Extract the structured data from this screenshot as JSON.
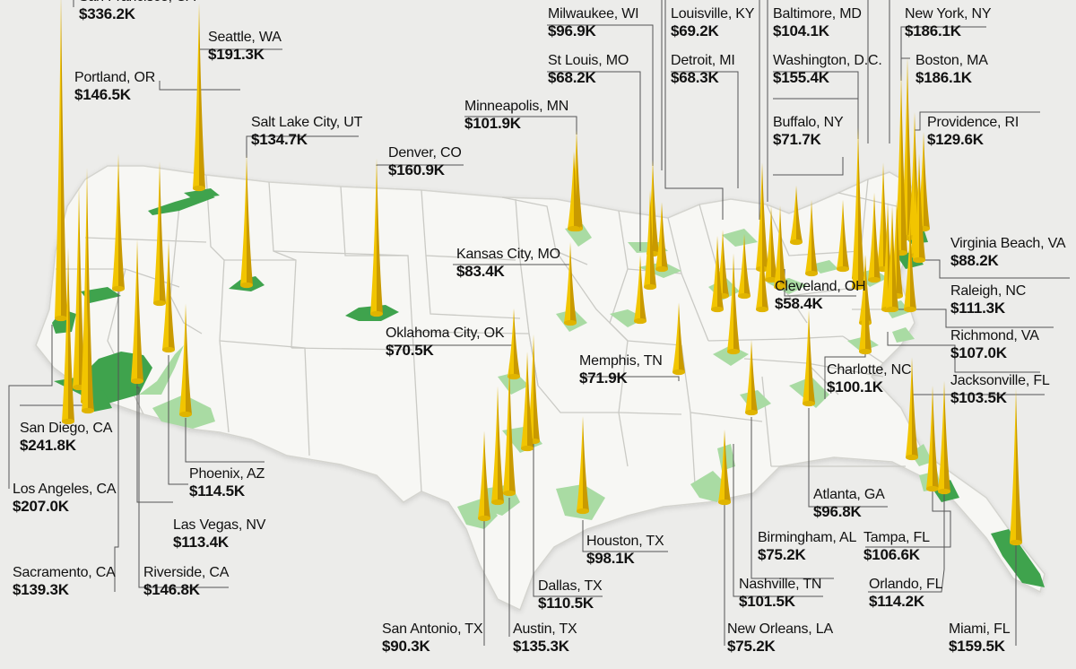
{
  "colors": {
    "background": "#ececea",
    "land": "#f7f7f4",
    "state_border": "#c9c9c4",
    "metro_fill_dark": "#3fa34d",
    "metro_fill_light": "#a9dba3",
    "spike_fill": "#f2c500",
    "spike_shade": "#c99a00",
    "leader_line": "#555555"
  },
  "cities": [
    {
      "name": "San Francisco, CA",
      "value": "$336.2K"
    },
    {
      "name": "Seattle, WA",
      "value": "$191.3K"
    },
    {
      "name": "Portland, OR",
      "value": "$146.5K"
    },
    {
      "name": "Salt Lake City, UT",
      "value": "$134.7K"
    },
    {
      "name": "Denver, CO",
      "value": "$160.9K"
    },
    {
      "name": "Milwaukee, WI",
      "value": "$96.9K"
    },
    {
      "name": "St Louis, MO",
      "value": "$68.2K"
    },
    {
      "name": "Minneapolis, MN",
      "value": "$101.9K"
    },
    {
      "name": "Louisville, KY",
      "value": "$69.2K"
    },
    {
      "name": "Detroit, MI",
      "value": "$68.3K"
    },
    {
      "name": "Baltimore, MD",
      "value": "$104.1K"
    },
    {
      "name": "Washington, D.C.",
      "value": "$155.4K"
    },
    {
      "name": "Buffalo, NY",
      "value": "$71.7K"
    },
    {
      "name": "New York, NY",
      "value": "$186.1K"
    },
    {
      "name": "Boston, MA",
      "value": "$186.1K"
    },
    {
      "name": "Providence, RI",
      "value": "$129.6K"
    },
    {
      "name": "Kansas City, MO",
      "value": "$83.4K"
    },
    {
      "name": "Virginia Beach, VA",
      "value": "$88.2K"
    },
    {
      "name": "Raleigh, NC",
      "value": "$111.3K"
    },
    {
      "name": "Cleveland, OH",
      "value": "$58.4K"
    },
    {
      "name": "Richmond, VA",
      "value": "$107.0K"
    },
    {
      "name": "Oklahoma City, OK",
      "value": "$70.5K"
    },
    {
      "name": "Memphis, TN",
      "value": "$71.9K"
    },
    {
      "name": "Charlotte, NC",
      "value": "$100.1K"
    },
    {
      "name": "Jacksonville, FL",
      "value": "$103.5K"
    },
    {
      "name": "San Diego, CA",
      "value": "$241.8K"
    },
    {
      "name": "Los Angeles, CA",
      "value": "$207.0K"
    },
    {
      "name": "Phoenix, AZ",
      "value": "$114.5K"
    },
    {
      "name": "Las Vegas, NV",
      "value": "$113.4K"
    },
    {
      "name": "Atlanta, GA",
      "value": "$96.8K"
    },
    {
      "name": "Sacramento, CA",
      "value": "$139.3K"
    },
    {
      "name": "Riverside, CA",
      "value": "$146.8K"
    },
    {
      "name": "Houston, TX",
      "value": "$98.1K"
    },
    {
      "name": "Dallas, TX",
      "value": "$110.5K"
    },
    {
      "name": "Birmingham, AL",
      "value": "$75.2K"
    },
    {
      "name": "Tampa, FL",
      "value": "$106.6K"
    },
    {
      "name": "Nashville, TN",
      "value": "$101.5K"
    },
    {
      "name": "Orlando, FL",
      "value": "$114.2K"
    },
    {
      "name": "San Antonio, TX",
      "value": "$90.3K"
    },
    {
      "name": "Austin, TX",
      "value": "$135.3K"
    },
    {
      "name": "New Orleans, LA",
      "value": "$75.2K"
    },
    {
      "name": "Miami, FL",
      "value": "$159.5K"
    }
  ]
}
